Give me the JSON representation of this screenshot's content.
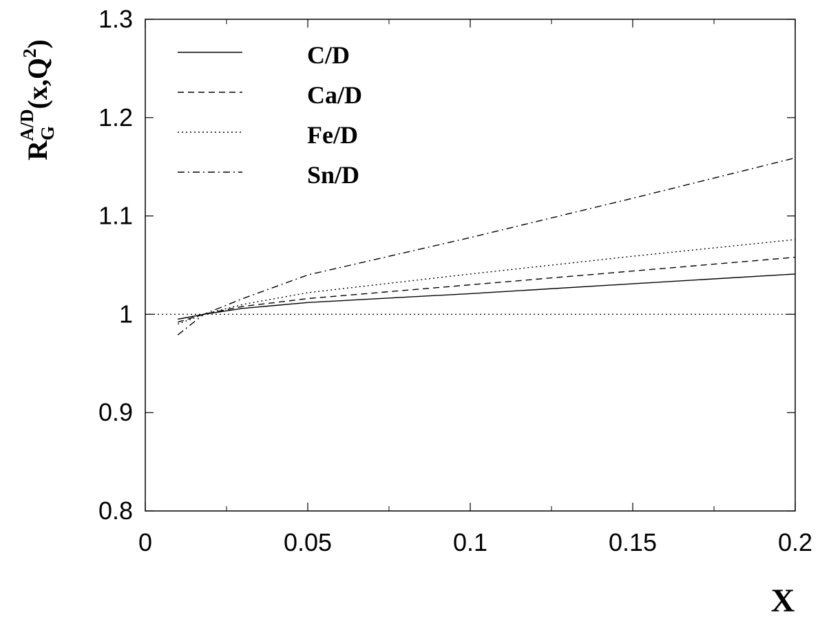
{
  "chart_data": {
    "type": "line",
    "xlabel": "X",
    "ylabel": {
      "base": "R",
      "sub": "G",
      "sup": "A/D",
      "tail_open": "(x,Q",
      "tail_sup": "2",
      "tail_close": ")"
    },
    "xlim": [
      0,
      0.2
    ],
    "ylim": [
      0.8,
      1.3
    ],
    "xticks": [
      {
        "value": 0,
        "label": "0"
      },
      {
        "value": 0.05,
        "label": "0.05"
      },
      {
        "value": 0.1,
        "label": "0.1"
      },
      {
        "value": 0.15,
        "label": "0.15"
      },
      {
        "value": 0.2,
        "label": "0.2"
      }
    ],
    "xminor": [
      0.025,
      0.075,
      0.125,
      0.175
    ],
    "yticks": [
      {
        "value": 0.8,
        "label": "0.8"
      },
      {
        "value": 0.9,
        "label": "0.9"
      },
      {
        "value": 1.0,
        "label": "1"
      },
      {
        "value": 1.1,
        "label": "1.1"
      },
      {
        "value": 1.2,
        "label": "1.2"
      },
      {
        "value": 1.3,
        "label": "1.3"
      }
    ],
    "reference_line": {
      "y": 1.0,
      "style": "dotted"
    },
    "legend_position": "top-left",
    "grid": false,
    "series": [
      {
        "name": "C/D",
        "style": "solid",
        "x": [
          0.01,
          0.018,
          0.03,
          0.05,
          0.1,
          0.15,
          0.2
        ],
        "y": [
          0.995,
          1.0,
          1.006,
          1.012,
          1.021,
          1.031,
          1.041
        ]
      },
      {
        "name": "Ca/D",
        "style": "dashed",
        "x": [
          0.01,
          0.018,
          0.03,
          0.05,
          0.1,
          0.15,
          0.2
        ],
        "y": [
          0.992,
          1.0,
          1.008,
          1.016,
          1.03,
          1.044,
          1.058
        ]
      },
      {
        "name": "Fe/D",
        "style": "dotted",
        "x": [
          0.01,
          0.018,
          0.03,
          0.05,
          0.1,
          0.15,
          0.2
        ],
        "y": [
          0.99,
          1.0,
          1.01,
          1.022,
          1.041,
          1.059,
          1.076
        ]
      },
      {
        "name": "Sn/D",
        "style": "dashdot",
        "x": [
          0.01,
          0.018,
          0.03,
          0.05,
          0.1,
          0.15,
          0.2
        ],
        "y": [
          0.979,
          1.0,
          1.016,
          1.04,
          1.078,
          1.118,
          1.159
        ]
      }
    ]
  }
}
